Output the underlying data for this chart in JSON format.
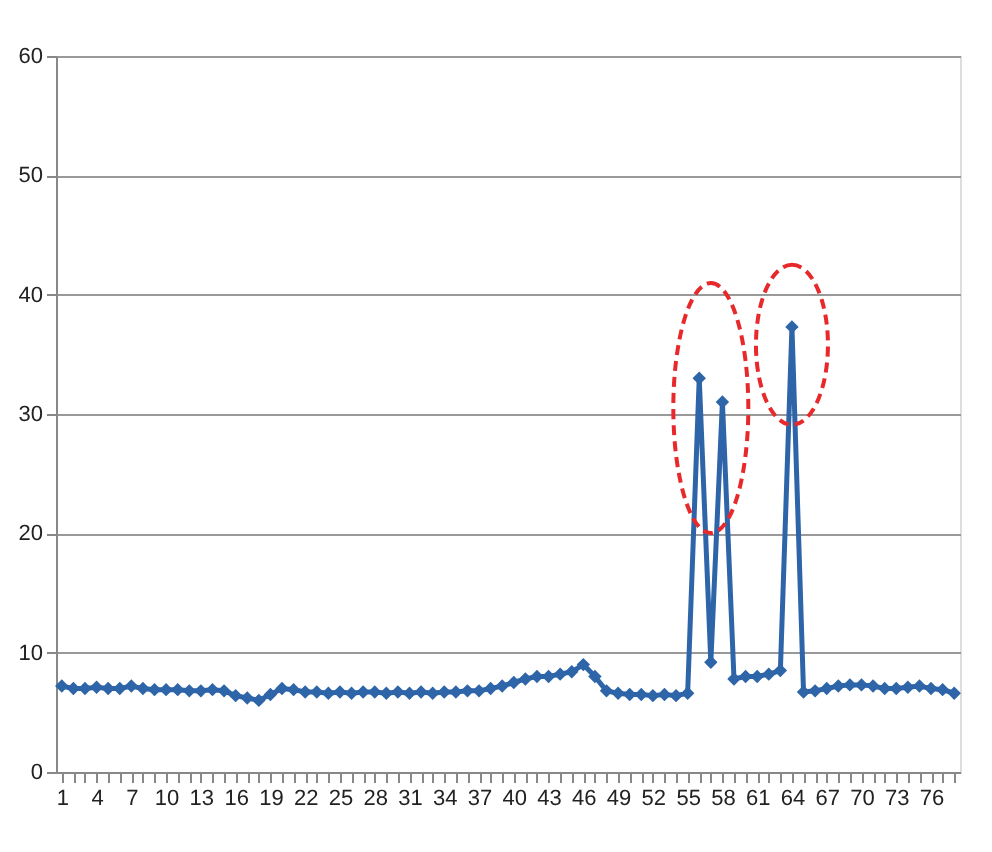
{
  "chart_data": {
    "type": "line",
    "categories": [
      "1",
      null,
      null,
      "4",
      null,
      null,
      "7",
      null,
      null,
      "10",
      null,
      null,
      "13",
      null,
      null,
      "16",
      null,
      null,
      "19",
      null,
      null,
      "22",
      null,
      null,
      "25",
      null,
      null,
      "28",
      null,
      null,
      "31",
      null,
      null,
      "34",
      null,
      null,
      "37",
      null,
      null,
      "40",
      null,
      null,
      "43",
      null,
      null,
      "46",
      null,
      null,
      "49",
      null,
      null,
      "52",
      null,
      null,
      "55",
      null,
      null,
      "58",
      null,
      null,
      "61",
      null,
      null,
      "64",
      null,
      null,
      "67",
      null,
      null,
      "70",
      null,
      null,
      "73",
      null,
      null,
      "76",
      null,
      null
    ],
    "series": [
      {
        "color": "#2e64a8",
        "values": [
          7.2,
          7.0,
          7.0,
          7.1,
          7.0,
          7.0,
          7.2,
          7.0,
          6.9,
          6.9,
          6.9,
          6.8,
          6.8,
          6.9,
          6.8,
          6.4,
          6.2,
          6.0,
          6.5,
          7.0,
          6.9,
          6.7,
          6.7,
          6.6,
          6.7,
          6.6,
          6.7,
          6.7,
          6.6,
          6.7,
          6.6,
          6.7,
          6.6,
          6.7,
          6.7,
          6.8,
          6.8,
          7.0,
          7.2,
          7.5,
          7.8,
          8.0,
          8.0,
          8.2,
          8.4,
          9.0,
          8.0,
          6.8,
          6.6,
          6.5,
          6.5,
          6.4,
          6.5,
          6.4,
          6.6,
          33,
          9.2,
          31,
          7.8,
          8.0,
          8.0,
          8.2,
          8.5,
          37.3,
          6.7,
          6.8,
          7.0,
          7.2,
          7.3,
          7.3,
          7.2,
          7.0,
          7.0,
          7.1,
          7.2,
          7.0,
          6.9,
          6.6
        ]
      }
    ],
    "ylim": [
      0,
      60
    ],
    "yticks": [
      0,
      10,
      20,
      30,
      40,
      50,
      60
    ],
    "grid": "y",
    "marker": "diamond",
    "line_style": "solid"
  }
}
